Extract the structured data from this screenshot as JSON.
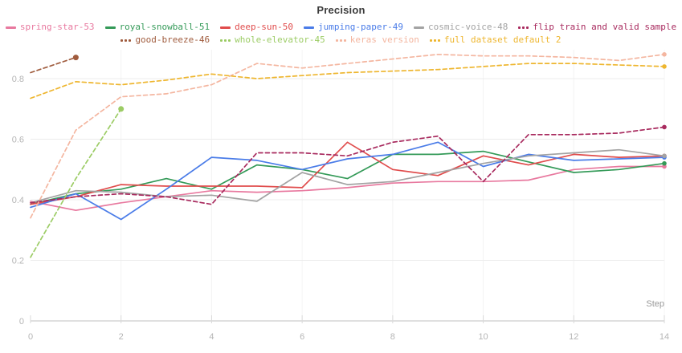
{
  "chart_data": {
    "type": "line",
    "title": "Precision",
    "xlabel": "Step",
    "xlim": [
      0,
      14
    ],
    "ylim": [
      0,
      0.93
    ],
    "xticks": [
      0,
      2,
      4,
      6,
      8,
      10,
      12,
      14
    ],
    "yticks": [
      0,
      0.2,
      0.4,
      0.6,
      0.8
    ],
    "grid": true,
    "legend_position": "top",
    "legend_rows": [
      [
        0,
        1,
        2,
        3,
        4,
        5
      ],
      [
        6,
        7,
        8,
        9
      ]
    ],
    "series": [
      {
        "name": "spring-star-53",
        "color": "#e8799f",
        "style": "solid",
        "values": [
          0.395,
          0.365,
          0.39,
          0.41,
          0.43,
          0.425,
          0.43,
          0.44,
          0.455,
          0.46,
          0.46,
          0.465,
          0.5,
          0.51,
          0.51
        ]
      },
      {
        "name": "royal-snowball-51",
        "color": "#349a58",
        "style": "solid",
        "values": [
          0.385,
          0.42,
          0.435,
          0.47,
          0.435,
          0.515,
          0.5,
          0.47,
          0.55,
          0.55,
          0.56,
          0.525,
          0.49,
          0.5,
          0.52
        ]
      },
      {
        "name": "deep-sun-50",
        "color": "#e04c4c",
        "style": "solid",
        "values": [
          0.385,
          0.41,
          0.45,
          0.445,
          0.445,
          0.445,
          0.44,
          0.59,
          0.5,
          0.48,
          0.545,
          0.515,
          0.55,
          0.54,
          0.545
        ]
      },
      {
        "name": "jumping-paper-49",
        "color": "#4a7ce8",
        "style": "solid",
        "values": [
          0.375,
          0.42,
          0.335,
          0.435,
          0.54,
          0.53,
          0.5,
          0.535,
          0.55,
          0.59,
          0.51,
          0.55,
          0.53,
          0.535,
          0.54
        ]
      },
      {
        "name": "cosmic-voice-48",
        "color": "#a3a3a3",
        "style": "solid",
        "values": [
          0.39,
          0.43,
          0.425,
          0.41,
          0.415,
          0.395,
          0.49,
          0.45,
          0.46,
          0.49,
          0.52,
          0.545,
          0.555,
          0.565,
          0.545
        ]
      },
      {
        "name": "flip train and valid sample",
        "color": "#a82a5e",
        "style": "dashed",
        "values": [
          0.39,
          0.41,
          0.42,
          0.41,
          0.385,
          0.555,
          0.555,
          0.545,
          0.59,
          0.61,
          0.46,
          0.615,
          0.615,
          0.62,
          0.64
        ]
      },
      {
        "name": "good-breeze-46",
        "color": "#a05c3e",
        "style": "dashed",
        "end_dot_r": 3.5,
        "values": [
          0.82,
          0.87
        ]
      },
      {
        "name": "whole-elevator-45",
        "color": "#9ccc65",
        "style": "dashed",
        "end_dot_r": 3.5,
        "values": [
          0.21,
          0.47,
          0.7
        ]
      },
      {
        "name": "keras version",
        "color": "#f4b6a0",
        "style": "dashed",
        "values": [
          0.34,
          0.63,
          0.74,
          0.75,
          0.78,
          0.85,
          0.835,
          0.85,
          0.865,
          0.88,
          0.875,
          0.875,
          0.87,
          0.86,
          0.88
        ]
      },
      {
        "name": "full dataset default 2",
        "color": "#eeb62f",
        "style": "dashed",
        "values": [
          0.735,
          0.79,
          0.78,
          0.795,
          0.815,
          0.8,
          0.81,
          0.82,
          0.825,
          0.83,
          0.84,
          0.85,
          0.85,
          0.845,
          0.84
        ]
      }
    ]
  },
  "layout_colors": {
    "gridline": "#ececec",
    "vertical_gridline": "#f4f4f4",
    "axis_line": "#e0e0e0",
    "tick_mark": "#d9d9d9",
    "tick_label": "#b5b5b5",
    "axis_name": "#9a9a9a",
    "title": "#3b3b3b"
  }
}
